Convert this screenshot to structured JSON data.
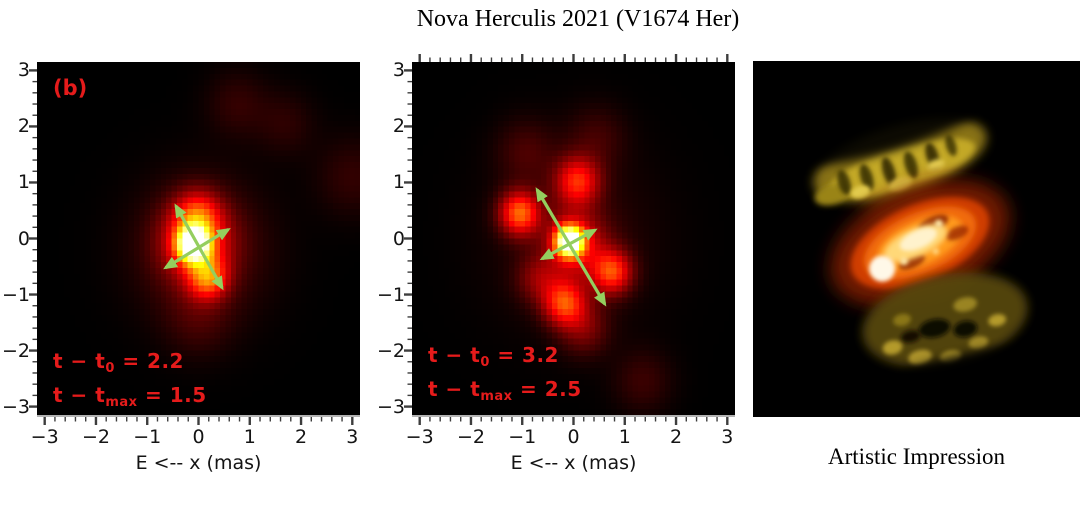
{
  "title": "Nova Herculis 2021 (V1674 Her)",
  "colors": {
    "annotation_red": "#e51b1b",
    "arrow_green": "#94ce5e",
    "heat_background": "#000000",
    "tick_color": "#3d3d3d"
  },
  "axes": {
    "x_label": "E <-- x (mas)"
  },
  "panels": {
    "left": {
      "panel_label": "(b)",
      "annotation": {
        "line1": {
          "pre": "t − t",
          "sub": "0",
          "post": " = 2.2"
        },
        "line2": {
          "pre": "t − t",
          "sub": "max",
          "post": " = 1.5"
        }
      }
    },
    "middle": {
      "annotation": {
        "line1": {
          "pre": "t − t",
          "sub": "0",
          "post": " = 3.2"
        },
        "line2": {
          "pre": "t − t",
          "sub": "max",
          "post": " = 2.5"
        }
      }
    },
    "right": {
      "caption": "Artistic Impression"
    }
  },
  "chart_data": [
    {
      "type": "heatmap",
      "panel": "left",
      "title": "Reconstructed image, t − t0 = 2.2 d (t − tmax = 1.5 d)",
      "colormap": "hot",
      "x_label": "E <-- x (mas)",
      "x_range": [
        -3.15,
        3.15
      ],
      "y_range": [
        -3.15,
        3.15
      ],
      "x_ticks": [
        -3,
        -2,
        -1,
        0,
        1,
        2,
        3
      ],
      "y_ticks": [
        -3,
        -2,
        -1,
        0,
        1,
        2,
        3
      ],
      "x_tick_labels": [
        "−3",
        "−2",
        "−1",
        "0",
        "1",
        "2",
        "3"
      ],
      "y_tick_labels": [
        "−3",
        "−2",
        "−1",
        "0",
        "1",
        "2",
        "3"
      ],
      "minor_tick_step": 0.2,
      "tick_sides": [
        "left",
        "bottom"
      ],
      "annotations": [
        "(b)",
        "t − t0 = 2.2",
        "t − tmax = 1.5"
      ],
      "arrows_mas": [
        {
          "x1": -0.44,
          "y1": 0.58,
          "x2": 0.46,
          "y2": -0.88
        },
        {
          "x1": -0.64,
          "y1": -0.52,
          "x2": 0.58,
          "y2": 0.16
        }
      ],
      "gaussian_components": [
        {
          "x": -0.1,
          "y": -0.1,
          "sigma": 0.2,
          "amp": 1.05
        },
        {
          "x": -0.05,
          "y": -0.05,
          "sigma": 0.45,
          "amp": 0.35
        },
        {
          "x": 0.18,
          "y": -0.7,
          "sigma": 0.26,
          "amp": 0.4
        },
        {
          "x": -0.02,
          "y": 0.42,
          "sigma": 0.3,
          "amp": 0.28
        },
        {
          "x": 0.05,
          "y": -0.2,
          "sigma": 0.85,
          "amp": 0.14
        },
        {
          "x": 0.0,
          "y": -1.45,
          "sigma": 0.45,
          "amp": 0.07
        },
        {
          "x": 0.75,
          "y": 2.4,
          "sigma": 0.42,
          "amp": 0.07
        },
        {
          "x": 1.7,
          "y": 2.05,
          "sigma": 0.4,
          "amp": 0.06
        },
        {
          "x": 3.0,
          "y": 1.1,
          "sigma": 0.5,
          "amp": 0.07
        }
      ]
    },
    {
      "type": "heatmap",
      "panel": "middle",
      "title": "Reconstructed image, t − t0 = 3.2 d (t − tmax = 2.5 d)",
      "colormap": "hot",
      "x_label": "E <-- x (mas)",
      "x_range": [
        -3.15,
        3.15
      ],
      "y_range": [
        -3.15,
        3.15
      ],
      "x_ticks": [
        -3,
        -2,
        -1,
        0,
        1,
        2,
        3
      ],
      "y_ticks": [
        -3,
        -2,
        -1,
        0,
        1,
        2,
        3
      ],
      "x_tick_labels": [
        "−3",
        "−2",
        "−1",
        "0",
        "1",
        "2",
        "3"
      ],
      "y_tick_labels": [
        "−3",
        "−2",
        "−1",
        "0",
        "1",
        "2",
        "3"
      ],
      "minor_tick_step": 0.2,
      "tick_sides": [
        "left",
        "bottom",
        "top"
      ],
      "annotations": [
        "t − t0 = 3.2",
        "t − tmax = 2.5"
      ],
      "arrows_mas": [
        {
          "x1": -0.71,
          "y1": 0.87,
          "x2": 0.61,
          "y2": -1.17
        },
        {
          "x1": -0.61,
          "y1": -0.36,
          "x2": 0.42,
          "y2": 0.15
        }
      ],
      "gaussian_components": [
        {
          "x": -0.08,
          "y": -0.05,
          "sigma": 0.18,
          "amp": 1.05
        },
        {
          "x": 0.05,
          "y": -0.1,
          "sigma": 0.4,
          "amp": 0.3
        },
        {
          "x": -1.05,
          "y": 0.45,
          "sigma": 0.27,
          "amp": 0.48
        },
        {
          "x": 0.08,
          "y": 1.02,
          "sigma": 0.3,
          "amp": 0.38
        },
        {
          "x": 0.75,
          "y": -0.6,
          "sigma": 0.27,
          "amp": 0.42
        },
        {
          "x": -0.18,
          "y": -1.15,
          "sigma": 0.28,
          "amp": 0.42
        },
        {
          "x": 0.2,
          "y": -1.6,
          "sigma": 0.33,
          "amp": 0.16
        },
        {
          "x": -0.68,
          "y": -0.72,
          "sigma": 0.3,
          "amp": 0.16
        },
        {
          "x": -0.93,
          "y": 1.55,
          "sigma": 0.4,
          "amp": 0.09
        },
        {
          "x": 0.45,
          "y": 1.8,
          "sigma": 0.4,
          "amp": 0.08
        },
        {
          "x": 1.35,
          "y": -2.55,
          "sigma": 0.4,
          "amp": 0.08
        },
        {
          "x": 0.0,
          "y": 0.0,
          "sigma": 1.1,
          "amp": 0.07
        }
      ]
    }
  ]
}
